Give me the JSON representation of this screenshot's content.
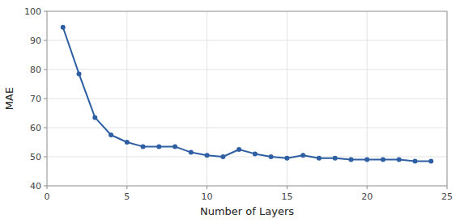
{
  "chart_data": {
    "type": "line",
    "x": [
      1,
      2,
      3,
      4,
      5,
      6,
      7,
      8,
      9,
      10,
      11,
      12,
      13,
      14,
      15,
      16,
      17,
      18,
      19,
      20,
      21,
      22,
      23,
      24
    ],
    "values": [
      94.5,
      78.5,
      63.5,
      57.5,
      55.0,
      53.5,
      53.5,
      53.5,
      51.5,
      50.5,
      50.0,
      52.5,
      51.0,
      50.0,
      49.5,
      50.5,
      49.5,
      49.5,
      49.0,
      49.0,
      49.0,
      49.0,
      48.5,
      48.5
    ],
    "color": "#2E5FA3",
    "marker": "circle",
    "xlabel": "Number of Layers",
    "ylabel": "MAE",
    "xlim": [
      0,
      25
    ],
    "ylim": [
      40,
      100
    ],
    "xticks": [
      0,
      5,
      10,
      15,
      20,
      25
    ],
    "yticks": [
      40,
      50,
      60,
      70,
      80,
      90,
      100
    ],
    "grid": true
  }
}
